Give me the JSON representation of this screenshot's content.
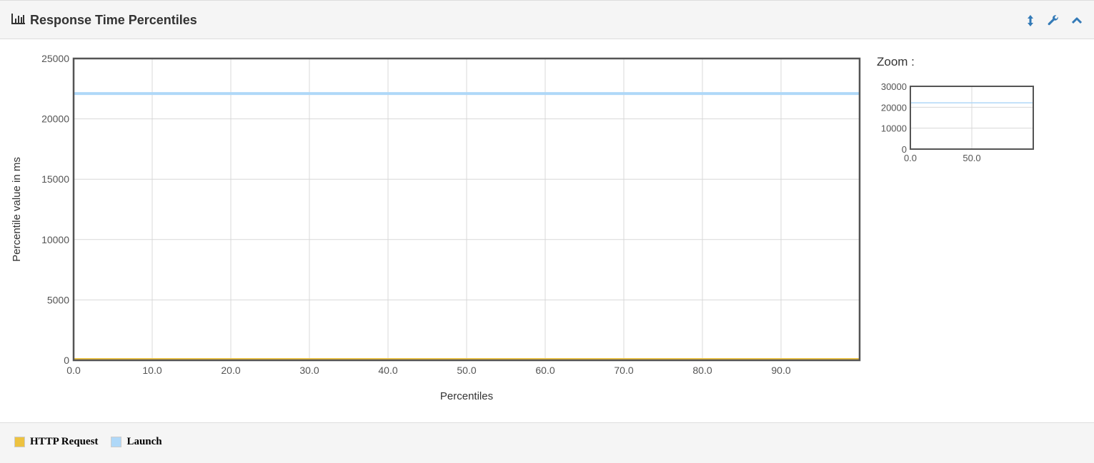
{
  "panel": {
    "title": "Response Time Percentiles",
    "icons": [
      "bar-chart-icon",
      "vertical-resize-icon",
      "wrench-icon",
      "chevron-up-icon"
    ]
  },
  "zoom": {
    "label": "Zoom :",
    "y_ticks": [
      "0",
      "10000",
      "20000",
      "30000"
    ],
    "x_ticks": [
      "0.0",
      "50.0"
    ],
    "ylim": [
      0,
      30000
    ],
    "xlim": [
      0,
      100
    ]
  },
  "colors": {
    "http_request": "#edc240",
    "launch": "#afd8f8",
    "header_bg": "#f5f5f5",
    "icon_blue": "#337ab7"
  },
  "chart_data": {
    "type": "line",
    "title": "Response Time Percentiles",
    "xlabel": "Percentiles",
    "ylabel": "Percentile value in ms",
    "xlim": [
      0,
      100
    ],
    "ylim": [
      0,
      25000
    ],
    "x_ticks": [
      "0.0",
      "10.0",
      "20.0",
      "30.0",
      "40.0",
      "50.0",
      "60.0",
      "70.0",
      "80.0",
      "90.0"
    ],
    "y_ticks": [
      "0",
      "5000",
      "10000",
      "15000",
      "20000",
      "25000"
    ],
    "grid": true,
    "legend_position": "bottom-left",
    "series": [
      {
        "name": "HTTP Request",
        "color": "#edc240",
        "x": [
          0,
          100
        ],
        "y": [
          60,
          60
        ]
      },
      {
        "name": "Launch",
        "color": "#afd8f8",
        "x": [
          0,
          100
        ],
        "y": [
          22100,
          22100
        ]
      }
    ]
  }
}
